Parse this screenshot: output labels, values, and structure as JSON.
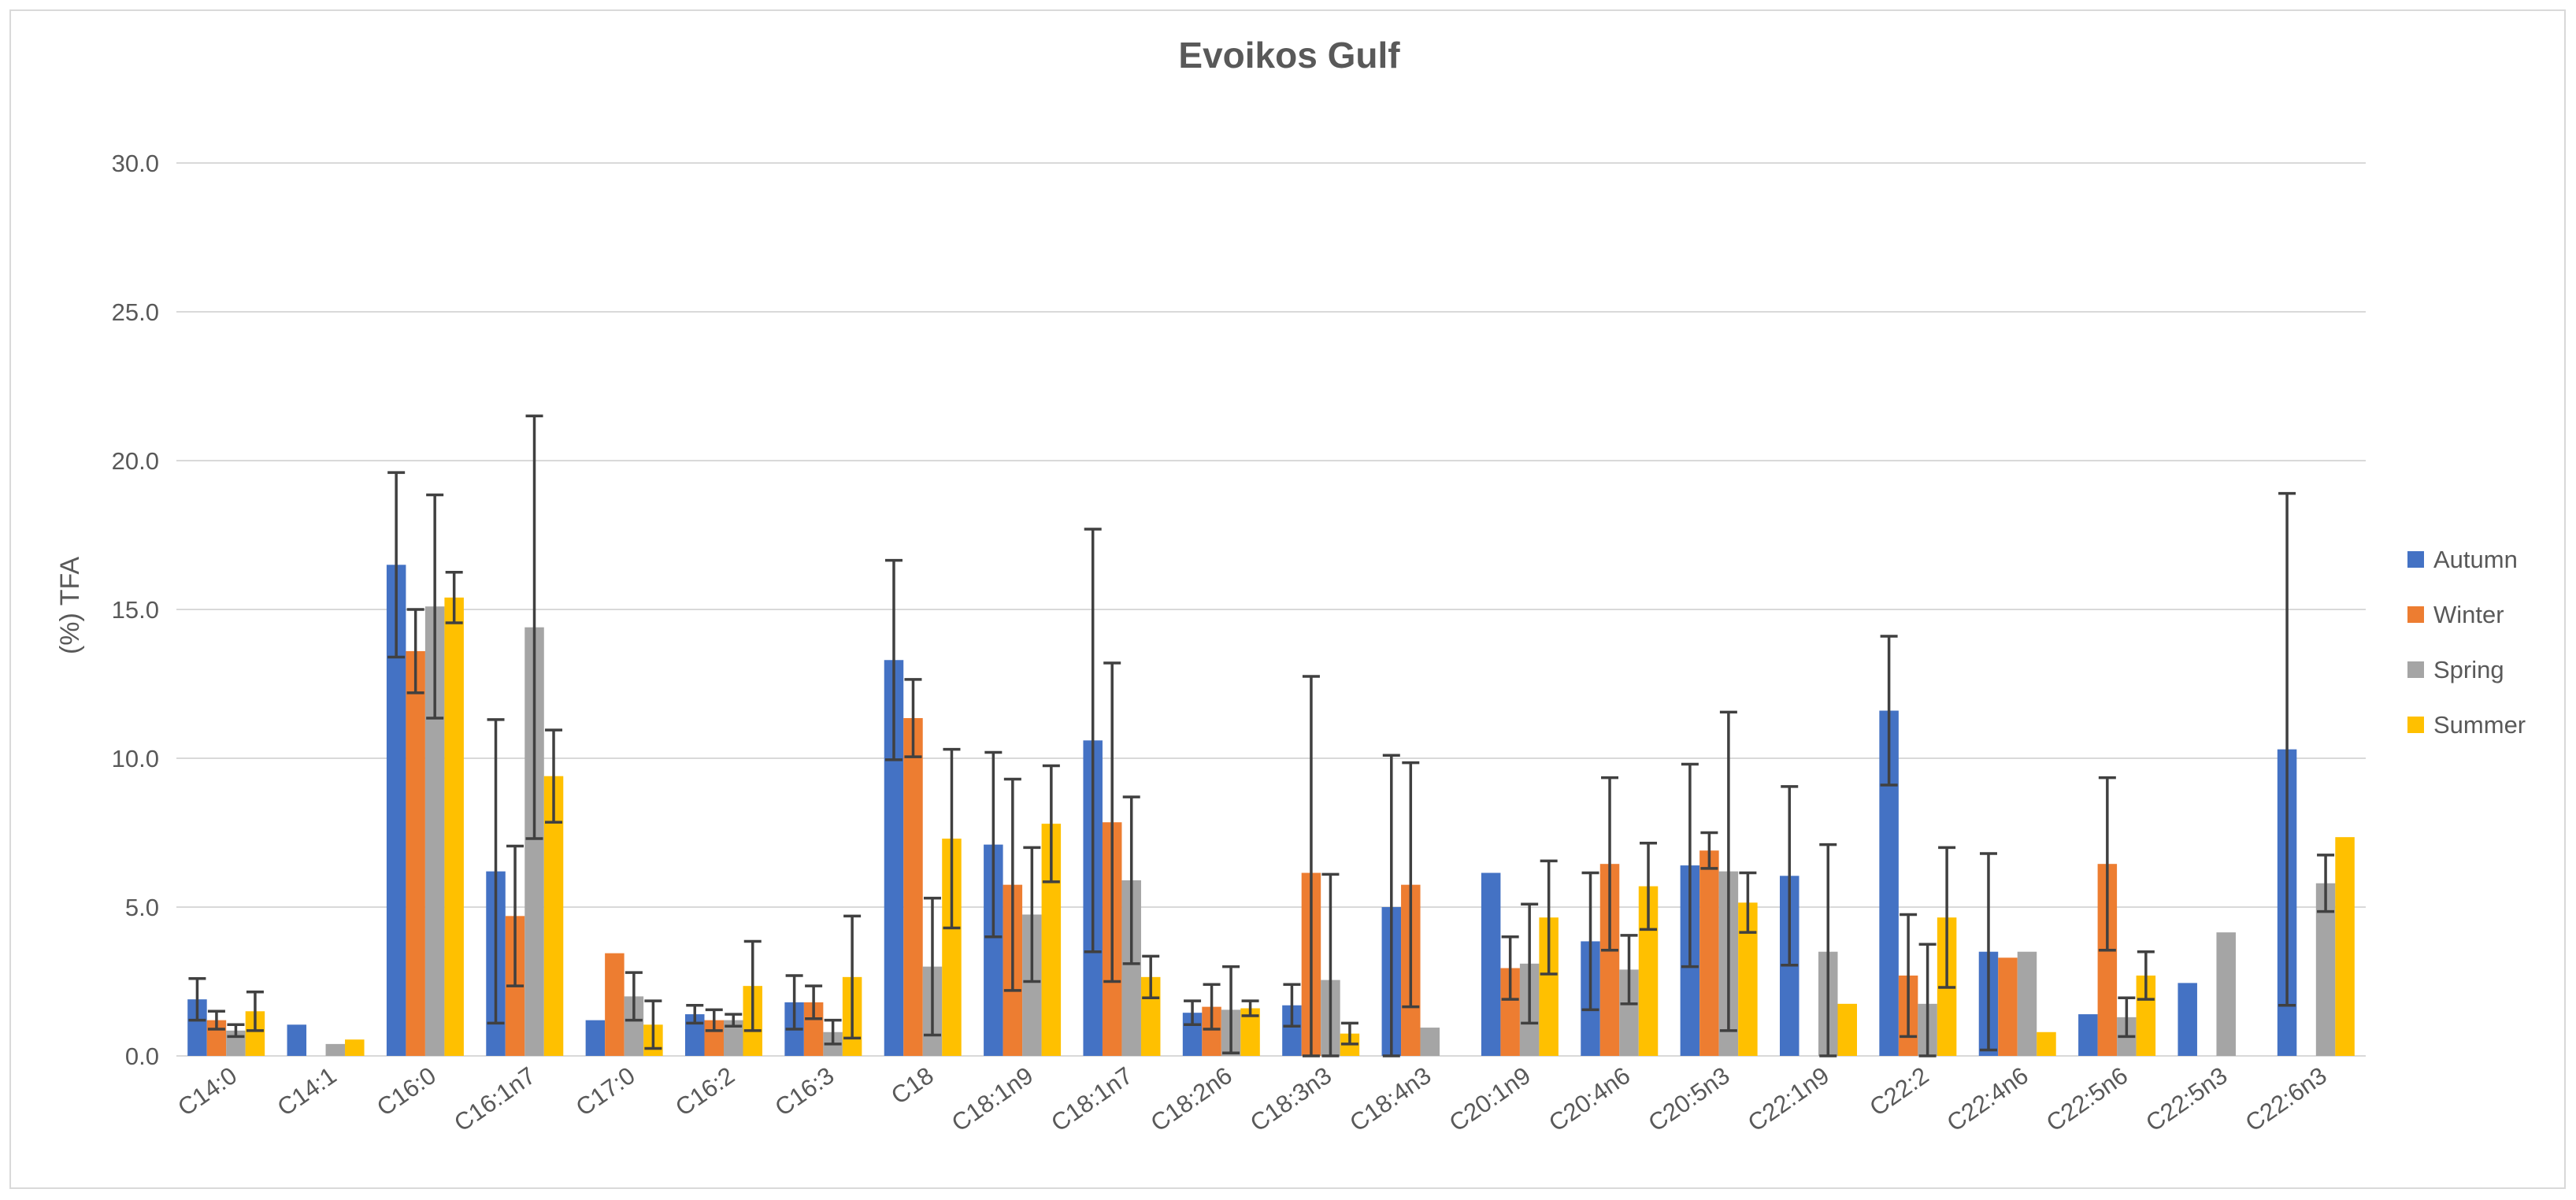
{
  "chart_data": {
    "type": "bar",
    "title": "Evoikos Gulf",
    "xlabel": "",
    "ylabel": "(%) TFA",
    "ylim": [
      0,
      30
    ],
    "yticks": [
      "0.0",
      "5.0",
      "10.0",
      "15.0",
      "20.0",
      "25.0",
      "30.0"
    ],
    "grid": true,
    "legend_position": "right",
    "categories": [
      "C14:0",
      "C14:1",
      "C16:0",
      "C16:1n7",
      "C17:0",
      "C16:2",
      "C16:3",
      "C18",
      "C18:1n9",
      "C18:1n7",
      "C18:2n6",
      "C18:3n3",
      "C18:4n3",
      "C20:1n9",
      "C20:4n6",
      "C20:5n3",
      "C22:1n9",
      "C22:2",
      "C22:4n6",
      "C22:5n6",
      "C22:5n3",
      "C22:6n3"
    ],
    "series": [
      {
        "name": "Autumn",
        "color": "#4472C4",
        "values": [
          1.9,
          1.05,
          16.5,
          6.2,
          1.2,
          1.4,
          1.8,
          13.3,
          7.1,
          10.6,
          1.45,
          1.7,
          5.0,
          6.15,
          3.85,
          6.4,
          6.05,
          11.6,
          3.5,
          1.4,
          2.45,
          10.3
        ],
        "errors": [
          0.7,
          null,
          3.1,
          5.1,
          null,
          0.3,
          0.9,
          3.35,
          3.1,
          7.1,
          0.4,
          0.7,
          5.1,
          null,
          2.3,
          3.4,
          3.0,
          2.5,
          3.3,
          null,
          null,
          8.6
        ]
      },
      {
        "name": "Winter",
        "color": "#ED7D31",
        "values": [
          1.2,
          0,
          13.6,
          4.7,
          3.45,
          1.2,
          1.8,
          11.35,
          5.75,
          7.85,
          1.65,
          6.15,
          5.75,
          2.95,
          6.45,
          6.9,
          0,
          2.7,
          3.3,
          6.45,
          0,
          0
        ],
        "errors": [
          0.3,
          null,
          1.4,
          2.35,
          null,
          0.35,
          0.55,
          1.3,
          3.55,
          5.35,
          0.75,
          6.6,
          4.1,
          1.05,
          2.9,
          0.6,
          null,
          2.05,
          null,
          2.9,
          null,
          null
        ]
      },
      {
        "name": "Spring",
        "color": "#A5A5A5",
        "values": [
          0.85,
          0.4,
          15.1,
          14.4,
          2.0,
          1.2,
          0.8,
          3.0,
          4.75,
          5.9,
          1.55,
          2.55,
          0.95,
          3.1,
          2.9,
          6.2,
          3.5,
          1.75,
          3.5,
          1.3,
          4.15,
          5.8
        ],
        "errors": [
          0.2,
          null,
          3.75,
          7.1,
          0.8,
          0.2,
          0.4,
          2.3,
          2.25,
          2.8,
          1.45,
          3.55,
          null,
          2.0,
          1.15,
          5.35,
          3.6,
          2.0,
          null,
          0.65,
          null,
          0.95
        ]
      },
      {
        "name": "Summer",
        "color": "#FFC000",
        "values": [
          1.5,
          0.55,
          15.4,
          9.4,
          1.05,
          2.35,
          2.65,
          7.3,
          7.8,
          2.65,
          1.6,
          0.75,
          0,
          4.65,
          5.7,
          5.15,
          1.75,
          4.65,
          0.8,
          2.7,
          0,
          7.35
        ],
        "errors": [
          0.65,
          null,
          0.85,
          1.55,
          0.8,
          1.5,
          2.05,
          3.0,
          1.95,
          0.7,
          0.25,
          0.35,
          null,
          1.9,
          1.45,
          1.0,
          null,
          2.35,
          null,
          0.8,
          null,
          null
        ]
      }
    ]
  }
}
